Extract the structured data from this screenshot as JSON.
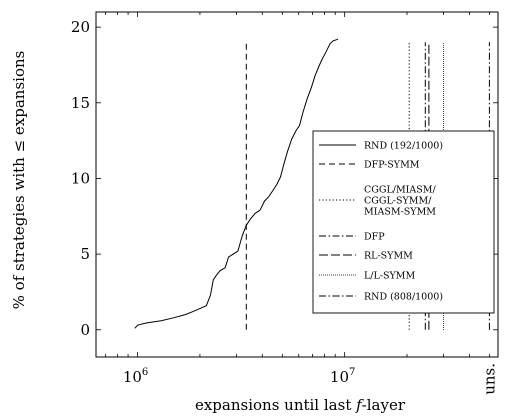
{
  "chart_data": {
    "type": "line",
    "xlabel": "expansions until last f-layer",
    "ylabel": "% of strategies with ≤ expansions",
    "xscale": "log",
    "xlim": [
      630000,
      55000000
    ],
    "ylim": [
      -1.8,
      21
    ],
    "x_ticks": [
      1000000,
      10000000
    ],
    "x_tick_labels": [
      "10",
      "10"
    ],
    "x_tick_exponents": [
      "6",
      "7"
    ],
    "x_extra_tick": {
      "label": "uns.",
      "x": 50000000
    },
    "y_ticks": [
      0,
      5,
      10,
      15,
      20
    ],
    "y_tick_labels": [
      "0",
      "5",
      "10",
      "15",
      "20"
    ],
    "grid": false,
    "legend_placement": "right",
    "series": [
      {
        "name": "RND (192/1000)",
        "style": "solid",
        "points": [
          [
            970000,
            0.1
          ],
          [
            1000000,
            0.3
          ],
          [
            1100000,
            0.45
          ],
          [
            1300000,
            0.6
          ],
          [
            1500000,
            0.8
          ],
          [
            1700000,
            1.0
          ],
          [
            1850000,
            1.2
          ],
          [
            2000000,
            1.4
          ],
          [
            2150000,
            1.6
          ],
          [
            2250000,
            2.3
          ],
          [
            2320000,
            3.3
          ],
          [
            2400000,
            3.6
          ],
          [
            2500000,
            3.9
          ],
          [
            2650000,
            4.1
          ],
          [
            2750000,
            4.8
          ],
          [
            2900000,
            5.0
          ],
          [
            3050000,
            5.2
          ],
          [
            3200000,
            6.2
          ],
          [
            3350000,
            6.9
          ],
          [
            3500000,
            7.3
          ],
          [
            3700000,
            7.7
          ],
          [
            3900000,
            7.9
          ],
          [
            4100000,
            8.5
          ],
          [
            4300000,
            8.8
          ],
          [
            4500000,
            9.2
          ],
          [
            4700000,
            9.6
          ],
          [
            4900000,
            10.1
          ],
          [
            5100000,
            11.0
          ],
          [
            5300000,
            11.8
          ],
          [
            5550000,
            12.6
          ],
          [
            5850000,
            13.2
          ],
          [
            6050000,
            13.5
          ],
          [
            6300000,
            14.4
          ],
          [
            6600000,
            15.3
          ],
          [
            6900000,
            16.0
          ],
          [
            7200000,
            16.8
          ],
          [
            7500000,
            17.4
          ],
          [
            7800000,
            17.9
          ],
          [
            8150000,
            18.4
          ],
          [
            8500000,
            18.9
          ],
          [
            8800000,
            19.1
          ],
          [
            9300000,
            19.2
          ]
        ]
      },
      {
        "name": "DFP-SYMM",
        "style": "dashed",
        "x": 3350000,
        "y_range": [
          0,
          19
        ]
      },
      {
        "name": "CGGL/MIASM/\nCGGL-SYMM/\nMIASM-SYMM",
        "style": "dotted",
        "x": 20500000,
        "y_range": [
          0,
          19
        ]
      },
      {
        "name": "DFP",
        "style": "dashdot",
        "x": 24500000,
        "y_range": [
          0,
          19
        ]
      },
      {
        "name": "RL-SYMM",
        "style": "longdash",
        "x": 25500000,
        "y_range": [
          0,
          19
        ]
      },
      {
        "name": "L/L-SYMM",
        "style": "densedot",
        "x": 30000000,
        "y_range": [
          0,
          19
        ]
      },
      {
        "name": "RND (808/1000)",
        "style": "dashdot",
        "x": 50000000,
        "y_range": [
          0,
          19
        ]
      }
    ]
  },
  "legend": {
    "labels": [
      "RND (192/1000)",
      "DFP-SYMM",
      "CGGL/MIASM/",
      "CGGL-SYMM/",
      "MIASM-SYMM",
      "DFP",
      "RL-SYMM",
      "L/L-SYMM",
      "RND (808/1000)"
    ]
  }
}
